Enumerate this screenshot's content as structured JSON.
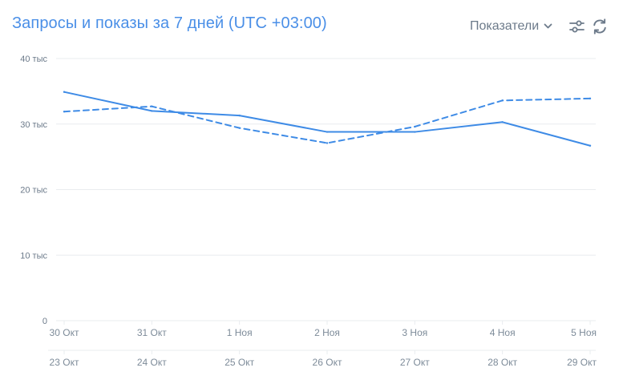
{
  "header": {
    "title": "Запросы и показы за 7 дней (UTC +03:00)",
    "metrics_label": "Показатели"
  },
  "icons": {
    "settings": "sliders-icon",
    "refresh": "refresh-icon",
    "dropdown": "chevron-down-icon"
  },
  "colors": {
    "title": "#4a8fe7",
    "series_line": "#3e8be6",
    "grid": "#e9ecef",
    "axis_text": "#7d8b99"
  },
  "chart_data": {
    "type": "line",
    "yticks": [
      "0",
      "10 тыс",
      "20 тыс",
      "30 тыс",
      "40 тыс"
    ],
    "ylim": [
      0,
      40000
    ],
    "x_current": [
      "30 Окт",
      "31 Окт",
      "1 Ноя",
      "2 Ноя",
      "3 Ноя",
      "4 Ноя",
      "5 Ноя"
    ],
    "x_previous": [
      "23 Окт",
      "24 Окт",
      "25 Окт",
      "26 Окт",
      "27 Окт",
      "28 Окт",
      "29 Окт"
    ],
    "grid": true,
    "series": [
      {
        "style": "solid",
        "axis": "current",
        "values": [
          34900,
          32000,
          31300,
          28800,
          28800,
          30300,
          26700
        ]
      },
      {
        "style": "dashed",
        "axis": "previous",
        "values": [
          31900,
          32700,
          29400,
          27100,
          29600,
          33600,
          33900
        ]
      }
    ]
  }
}
